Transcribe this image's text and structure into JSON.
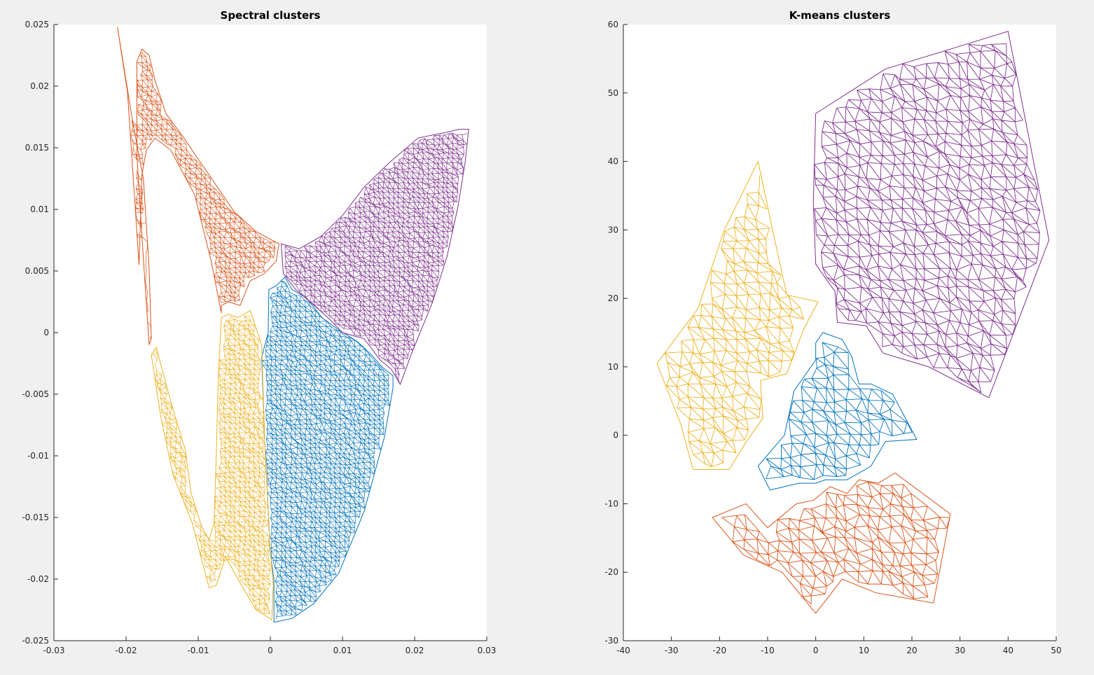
{
  "chart_data": [
    {
      "type": "scatter",
      "title": "Spectral clusters",
      "xlabel": "",
      "ylabel": "",
      "xlim": [
        -0.03,
        0.03
      ],
      "ylim": [
        -0.025,
        0.025
      ],
      "xticks": [
        -0.03,
        -0.02,
        -0.01,
        0,
        0.01,
        0.02,
        0.03
      ],
      "xtick_labels": [
        "-0.03",
        "-0.02",
        "-0.01",
        "0",
        "0.01",
        "0.02",
        "0.03"
      ],
      "yticks": [
        -0.025,
        -0.02,
        -0.015,
        -0.01,
        -0.005,
        0,
        0.005,
        0.01,
        0.015,
        0.02,
        0.025
      ],
      "ytick_labels": [
        "-0.025",
        "-0.02",
        "-0.015",
        "-0.01",
        "-0.005",
        "0",
        "0.005",
        "0.01",
        "0.015",
        "0.02",
        "0.025"
      ],
      "grid": false,
      "series": [
        {
          "color": "#0072bd",
          "outline": [
            [
              -0.0002,
              0.0035
            ],
            [
              0.0008,
              0.0038
            ],
            [
              0.002,
              0.0045
            ],
            [
              0.003,
              0.0035
            ],
            [
              0.005,
              0.0028
            ],
            [
              0.0072,
              0.0012
            ],
            [
              0.0095,
              0.0002
            ],
            [
              0.012,
              -0.0007
            ],
            [
              0.014,
              -0.0018
            ],
            [
              0.0155,
              -0.0028
            ],
            [
              0.017,
              -0.0035
            ],
            [
              0.017,
              -0.0045
            ],
            [
              0.0158,
              -0.0085
            ],
            [
              0.013,
              -0.0145
            ],
            [
              0.0095,
              -0.0195
            ],
            [
              0.006,
              -0.022
            ],
            [
              0.003,
              -0.0232
            ],
            [
              0.0005,
              -0.0235
            ],
            [
              0.0005,
              -0.02
            ],
            [
              0,
              -0.018
            ],
            [
              -0.0008,
              -0.0085
            ],
            [
              -0.0012,
              -0.002
            ],
            [
              -0.0003,
              0
            ]
          ]
        },
        {
          "color": "#d95319",
          "outline": [
            [
              -0.0212,
              0.0248
            ],
            [
              -0.019,
              0.0168
            ],
            [
              -0.0176,
              0.0125
            ],
            [
              -0.0168,
              0.0052
            ],
            [
              -0.0165,
              -0.0005
            ],
            [
              -0.0168,
              -0.001
            ],
            [
              -0.0176,
              0.006
            ],
            [
              -0.0185,
              0.0145
            ],
            [
              -0.0185,
              0.022
            ],
            [
              -0.0178,
              0.023
            ],
            [
              -0.0168,
              0.0225
            ],
            [
              -0.016,
              0.0205
            ],
            [
              -0.0145,
              0.0178
            ],
            [
              -0.012,
              0.0158
            ],
            [
              -0.0085,
              0.0128
            ],
            [
              -0.005,
              0.0098
            ],
            [
              -0.002,
              0.0082
            ],
            [
              0.0012,
              0.0072
            ],
            [
              0.0008,
              0.0058
            ],
            [
              -0.0008,
              0.0048
            ],
            [
              -0.0028,
              0.0042
            ],
            [
              -0.0042,
              0.0022
            ],
            [
              -0.0058,
              0.0025
            ],
            [
              -0.0068,
              0.0022
            ],
            [
              -0.0068,
              0.0016
            ],
            [
              -0.0082,
              0.0058
            ],
            [
              -0.0105,
              0.0112
            ],
            [
              -0.0138,
              0.0148
            ],
            [
              -0.016,
              0.0158
            ],
            [
              -0.0172,
              0.0148
            ],
            [
              -0.0178,
              0.0128
            ],
            [
              -0.0182,
              0.0055
            ],
            [
              -0.019,
              0.0125
            ],
            [
              -0.0198,
              0.0195
            ]
          ]
        },
        {
          "color": "#edb120",
          "outline": [
            [
              -0.0165,
              -0.0018
            ],
            [
              -0.0152,
              -0.0068
            ],
            [
              -0.0135,
              -0.0115
            ],
            [
              -0.0108,
              -0.0155
            ],
            [
              -0.0095,
              -0.0185
            ],
            [
              -0.0085,
              -0.0207
            ],
            [
              -0.0075,
              -0.0205
            ],
            [
              -0.0062,
              -0.0182
            ],
            [
              -0.004,
              -0.0205
            ],
            [
              -0.002,
              -0.0225
            ],
            [
              0.0002,
              -0.0233
            ],
            [
              0.0004,
              -0.0205
            ],
            [
              0,
              -0.0178
            ],
            [
              -0.0008,
              -0.0085
            ],
            [
              -0.0012,
              -0.001
            ],
            [
              -0.0028,
              0.0018
            ],
            [
              -0.0045,
              0.0012
            ],
            [
              -0.0058,
              0.0015
            ],
            [
              -0.0068,
              0.0012
            ],
            [
              -0.0072,
              -0.0035
            ],
            [
              -0.0075,
              -0.01
            ],
            [
              -0.0078,
              -0.0155
            ],
            [
              -0.0085,
              -0.0168
            ],
            [
              -0.0095,
              -0.0158
            ],
            [
              -0.011,
              -0.013
            ],
            [
              -0.0118,
              -0.0095
            ],
            [
              -0.0135,
              -0.0062
            ],
            [
              -0.015,
              -0.003
            ],
            [
              -0.0158,
              -0.0012
            ]
          ]
        },
        {
          "color": "#7e2f8e",
          "outline": [
            [
              0.0015,
              0.0072
            ],
            [
              0.004,
              0.0068
            ],
            [
              0.007,
              0.0078
            ],
            [
              0.01,
              0.0095
            ],
            [
              0.013,
              0.0118
            ],
            [
              0.0165,
              0.0138
            ],
            [
              0.0205,
              0.0158
            ],
            [
              0.024,
              0.0162
            ],
            [
              0.0262,
              0.0165
            ],
            [
              0.0275,
              0.0165
            ],
            [
              0.027,
              0.0138
            ],
            [
              0.026,
              0.0102
            ],
            [
              0.0245,
              0.0062
            ],
            [
              0.0225,
              0.0025
            ],
            [
              0.0195,
              -0.0018
            ],
            [
              0.018,
              -0.0042
            ],
            [
              0.0168,
              -0.003
            ],
            [
              0.0152,
              -0.0022
            ],
            [
              0.013,
              -0.0005
            ],
            [
              0.01,
              0
            ],
            [
              0.008,
              0.0012
            ],
            [
              0.0055,
              0.0025
            ],
            [
              0.0035,
              0.0035
            ],
            [
              0.0018,
              0.0048
            ]
          ]
        }
      ]
    },
    {
      "type": "scatter",
      "title": "K-means clusters",
      "xlabel": "",
      "ylabel": "",
      "xlim": [
        -40,
        50
      ],
      "ylim": [
        -30,
        60
      ],
      "xticks": [
        -40,
        -30,
        -20,
        -10,
        0,
        10,
        20,
        30,
        40,
        50
      ],
      "xtick_labels": [
        "-40",
        "-30",
        "-20",
        "-10",
        "0",
        "10",
        "20",
        "30",
        "40",
        "50"
      ],
      "yticks": [
        -30,
        -20,
        -10,
        0,
        10,
        20,
        30,
        40,
        50,
        60
      ],
      "ytick_labels": [
        "-30",
        "-20",
        "-10",
        "0",
        "10",
        "20",
        "30",
        "40",
        "50",
        "60"
      ],
      "grid": false,
      "series": [
        {
          "color": "#0072bd",
          "outline": [
            [
              1.5,
              15
            ],
            [
              5.5,
              14
            ],
            [
              7.5,
              11.5
            ],
            [
              9,
              7.5
            ],
            [
              11.5,
              7.5
            ],
            [
              16,
              6
            ],
            [
              21,
              -0.6
            ],
            [
              14.5,
              -0.9
            ],
            [
              11.5,
              -4.5
            ],
            [
              6.5,
              -6.5
            ],
            [
              2,
              -6.5
            ],
            [
              0,
              -7
            ],
            [
              -3.5,
              -7
            ],
            [
              -9.5,
              -8
            ],
            [
              -12,
              -4.5
            ],
            [
              -6.5,
              0
            ],
            [
              -4.5,
              6.5
            ],
            [
              0,
              11
            ],
            [
              0,
              13.5
            ]
          ]
        },
        {
          "color": "#d95319",
          "outline": [
            [
              -21.5,
              -12
            ],
            [
              -14.5,
              -10
            ],
            [
              -10,
              -13.5
            ],
            [
              -4,
              -10
            ],
            [
              -0.5,
              -9.5
            ],
            [
              3,
              -7.5
            ],
            [
              6.5,
              -8.5
            ],
            [
              9,
              -6.5
            ],
            [
              13,
              -7
            ],
            [
              16.5,
              -5.5
            ],
            [
              28,
              -11.5
            ],
            [
              24.5,
              -24.5
            ],
            [
              12.5,
              -23
            ],
            [
              5.5,
              -21
            ],
            [
              0,
              -26
            ],
            [
              -7,
              -20
            ],
            [
              -15,
              -17.5
            ]
          ]
        },
        {
          "color": "#edb120",
          "outline": [
            [
              -12,
              40
            ],
            [
              -19,
              30
            ],
            [
              -24.5,
              18.5
            ],
            [
              -33,
              10.5
            ],
            [
              -28,
              1.5
            ],
            [
              -25.5,
              -5
            ],
            [
              -18,
              -5
            ],
            [
              -14.5,
              -1
            ],
            [
              -11,
              2.5
            ],
            [
              -11.5,
              8
            ],
            [
              -6,
              9
            ],
            [
              -2.5,
              15.5
            ],
            [
              0.5,
              19.5
            ],
            [
              -6,
              20.5
            ],
            [
              -8.5,
              28.5
            ]
          ]
        },
        {
          "color": "#7e2f8e",
          "outline": [
            [
              0,
              47
            ],
            [
              14.5,
              53.5
            ],
            [
              40,
              59
            ],
            [
              48.5,
              28.5
            ],
            [
              36,
              5.5
            ],
            [
              23.5,
              10
            ],
            [
              14,
              12
            ],
            [
              10.5,
              16
            ],
            [
              4.5,
              16.5
            ],
            [
              4,
              21
            ],
            [
              0,
              25
            ],
            [
              -0.5,
              34
            ]
          ]
        }
      ]
    }
  ]
}
